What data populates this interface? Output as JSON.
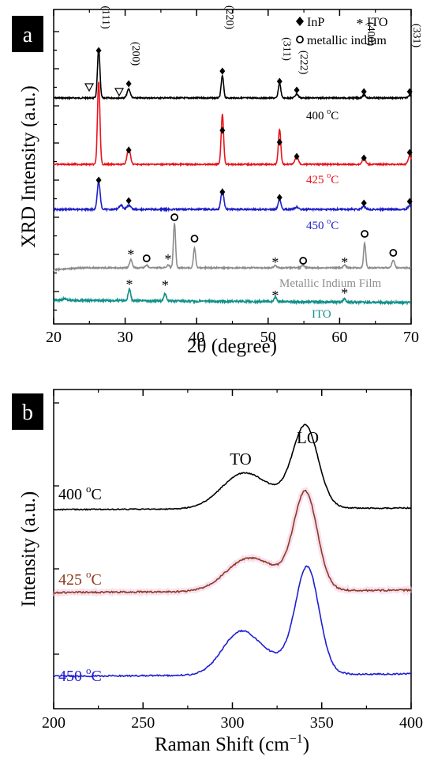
{
  "colors": {
    "400C": "#000000",
    "425C_a": "#e8141c",
    "450C_a": "#1f1fc8",
    "indium": "#8c8c8c",
    "ito": "#12908a",
    "425C_b": "#8b3c1e",
    "450C_b": "#1f1fd2"
  },
  "chart_data": [
    {
      "panel": "a",
      "type": "line",
      "xlabel": "2θ (degree)",
      "ylabel": "XRD Intensity (a.u.)",
      "xlim": [
        20,
        70
      ],
      "xticks": [
        "20",
        "30",
        "40",
        "50",
        "60",
        "70"
      ],
      "legend": {
        "placement": "top-right",
        "entries": [
          {
            "marker": "diamond",
            "label": "InP"
          },
          {
            "marker": "star",
            "label": "ITO"
          },
          {
            "marker": "circle",
            "label": "metallic indium"
          }
        ]
      },
      "series": [
        {
          "name": "400 °C",
          "color": "#000000",
          "peaks": [
            [
              26.3,
              1.0
            ],
            [
              30.5,
              0.18
            ],
            [
              43.6,
              0.45
            ],
            [
              51.6,
              0.3
            ],
            [
              54.0,
              0.08
            ],
            [
              63.4,
              0.06
            ],
            [
              69.8,
              0.06
            ]
          ]
        },
        {
          "name": "425 °C",
          "color": "#e8141c",
          "peaks": [
            [
              26.3,
              1.0
            ],
            [
              30.5,
              0.2
            ],
            [
              43.6,
              0.6
            ],
            [
              51.6,
              0.42
            ],
            [
              54.0,
              0.1
            ],
            [
              63.4,
              0.08
            ],
            [
              69.8,
              0.1
            ]
          ]
        },
        {
          "name": "450 °C",
          "color": "#1f1fc8",
          "peaks": [
            [
              26.3,
              1.0
            ],
            [
              29.4,
              0.15
            ],
            [
              30.5,
              0.15
            ],
            [
              43.6,
              0.7
            ],
            [
              51.6,
              0.38
            ],
            [
              54.0,
              0.08
            ],
            [
              63.4,
              0.1
            ],
            [
              69.8,
              0.12
            ]
          ]
        },
        {
          "name": "Metallic Indium Film",
          "color": "#8c8c8c",
          "peaks": [
            [
              30.8,
              0.18
            ],
            [
              33.0,
              0.06
            ],
            [
              36.0,
              0.06
            ],
            [
              36.9,
              1.0
            ],
            [
              39.7,
              0.45
            ],
            [
              51.0,
              0.05
            ],
            [
              54.9,
              0.06
            ],
            [
              60.7,
              0.06
            ],
            [
              63.5,
              0.55
            ],
            [
              67.5,
              0.17
            ]
          ]
        },
        {
          "name": "ITO",
          "color": "#12908a",
          "peaks": [
            [
              21.5,
              0.15
            ],
            [
              30.6,
              1.0
            ],
            [
              35.6,
              0.65
            ],
            [
              51.0,
              0.4
            ],
            [
              60.7,
              0.3
            ]
          ]
        }
      ],
      "peak_labels": [
        {
          "x": 26.3,
          "text": "(111)"
        },
        {
          "x": 30.5,
          "text": "(200)"
        },
        {
          "x": 43.6,
          "text": "(220)"
        },
        {
          "x": 51.6,
          "text": "(311)"
        },
        {
          "x": 54.0,
          "text": "(222)"
        },
        {
          "x": 63.4,
          "text": "(400)"
        },
        {
          "x": 69.8,
          "text": "(331)"
        }
      ],
      "panel_label": "a"
    },
    {
      "panel": "b",
      "type": "line",
      "xlabel": "Raman Shift (cm",
      "xlabel_sup": "−1",
      "xlabel_end": ")",
      "ylabel": "Intensity (a.u.)",
      "xlim": [
        200,
        400
      ],
      "xticks": [
        "200",
        "250",
        "300",
        "350",
        "400"
      ],
      "annotations": [
        {
          "text": "TO",
          "x": 305
        },
        {
          "text": "LO",
          "x": 341
        }
      ],
      "series": [
        {
          "name": "400 °C",
          "color": "#000000",
          "to": [
            305,
            0.4
          ],
          "lo": [
            341,
            1.0
          ]
        },
        {
          "name": "425 °C",
          "color": "#8b3c1e",
          "to": [
            307,
            0.28
          ],
          "lo": [
            341,
            1.0
          ]
        },
        {
          "name": "450 °C",
          "color": "#1f1fd2",
          "to": [
            304,
            0.38
          ],
          "lo": [
            342,
            1.0
          ]
        }
      ],
      "panel_label": "b"
    }
  ],
  "labels": {
    "panel_a": "a",
    "panel_b": "b",
    "a_400": "400 ",
    "a_425": "425 ",
    "a_450": "450 ",
    "deg_sup": "o",
    "deg_c": "C",
    "indium_film": "Metallic Indium Film",
    "ito": "ITO",
    "legend_inp": "InP",
    "legend_ito": "ITO",
    "legend_indium": "metallic indium",
    "b_400": "400 ",
    "b_425": "425 ",
    "b_450": "450 ",
    "to": "TO",
    "lo": "LO"
  }
}
